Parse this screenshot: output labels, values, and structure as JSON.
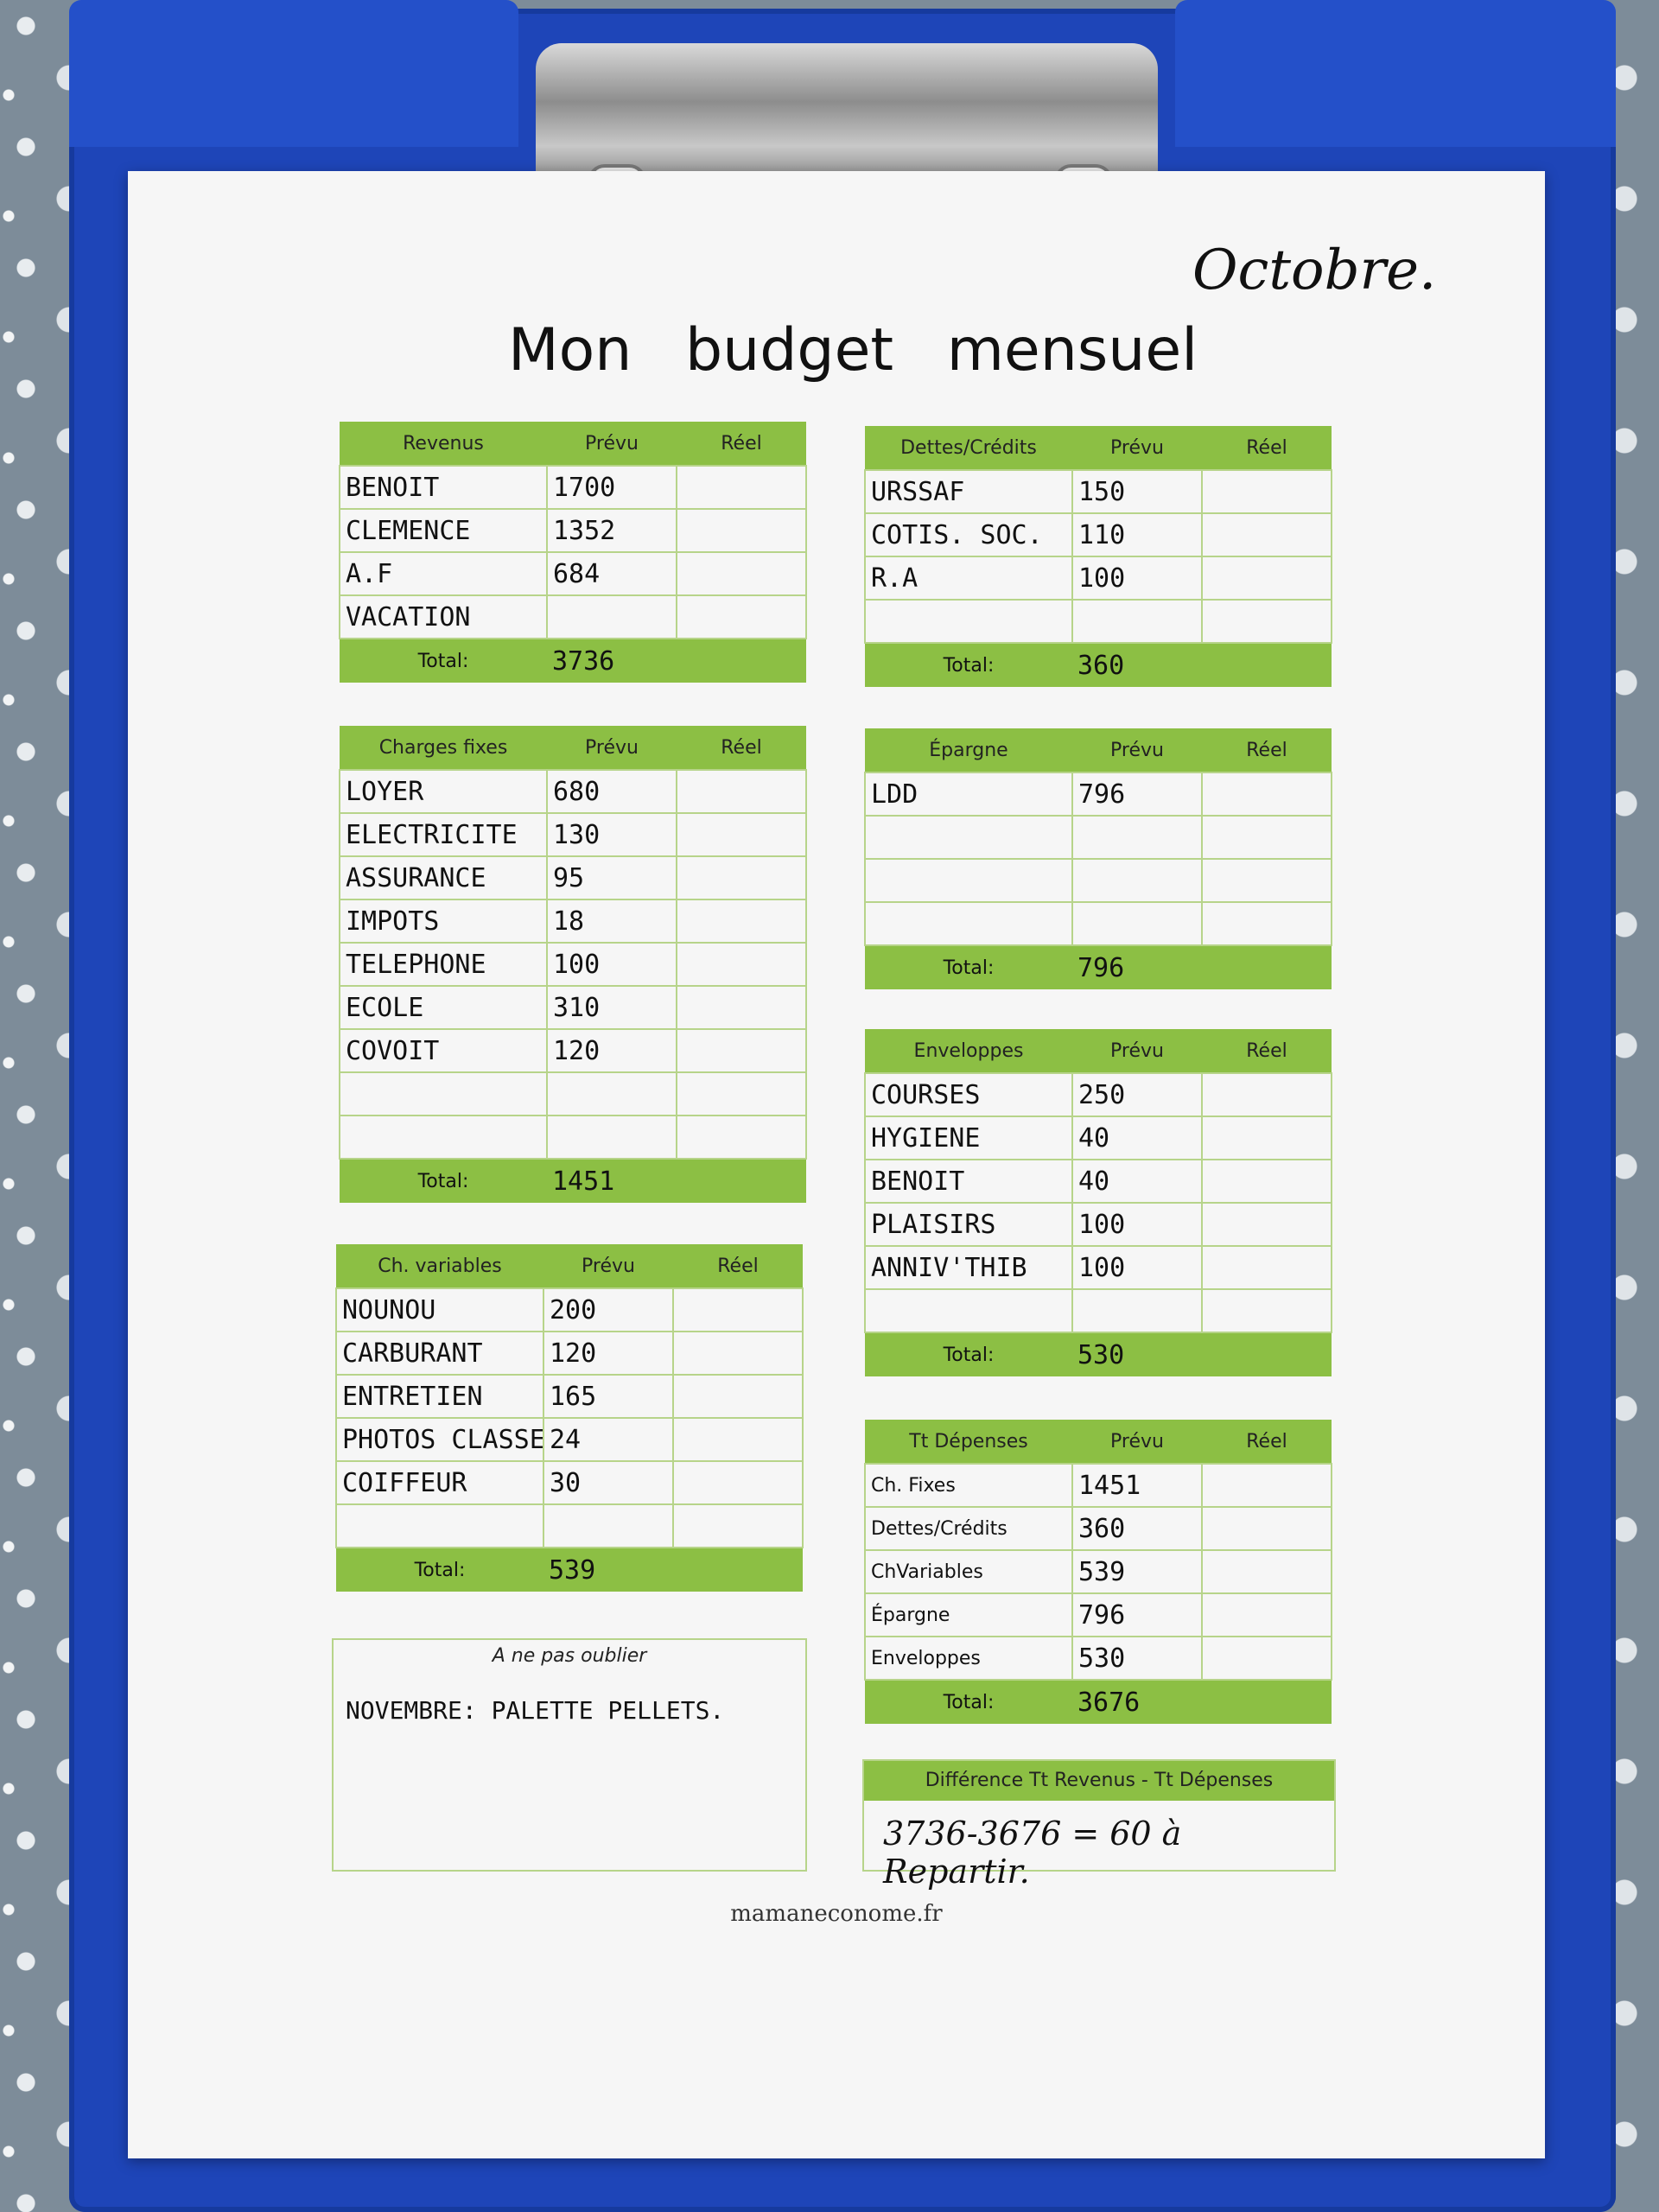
{
  "month": "Octobre.",
  "title": "Mon budget mensuel",
  "col_prevu": "Prévu",
  "col_reel": "Réel",
  "total_label": "Total:",
  "revenus": {
    "header": "Revenus",
    "rows": [
      {
        "label": "BENOIT",
        "prevu": "1700"
      },
      {
        "label": "CLEMENCE",
        "prevu": "1352"
      },
      {
        "label": "A.F",
        "prevu": "684"
      },
      {
        "label": "VACATION",
        "prevu": ""
      }
    ],
    "total": "3736"
  },
  "dettes": {
    "header": "Dettes/Crédits",
    "rows": [
      {
        "label": "URSSAF",
        "prevu": "150"
      },
      {
        "label": "COTIS. SOC.",
        "prevu": "110"
      },
      {
        "label": "R.A",
        "prevu": "100"
      },
      {
        "label": "",
        "prevu": ""
      }
    ],
    "total": "360"
  },
  "charges_fixes": {
    "header": "Charges fixes",
    "rows": [
      {
        "label": "LOYER",
        "prevu": "680"
      },
      {
        "label": "ELECTRICITE",
        "prevu": "130"
      },
      {
        "label": "ASSURANCE",
        "prevu": "95"
      },
      {
        "label": "IMPOTS",
        "prevu": "18"
      },
      {
        "label": "TELEPHONE",
        "prevu": "100"
      },
      {
        "label": "ECOLE",
        "prevu": "310"
      },
      {
        "label": "COVOIT",
        "prevu": "120"
      },
      {
        "label": "",
        "prevu": ""
      },
      {
        "label": "",
        "prevu": ""
      }
    ],
    "total": "1451"
  },
  "epargne": {
    "header": "Épargne",
    "rows": [
      {
        "label": "LDD",
        "prevu": "796"
      },
      {
        "label": "",
        "prevu": ""
      },
      {
        "label": "",
        "prevu": ""
      },
      {
        "label": "",
        "prevu": ""
      }
    ],
    "total": "796"
  },
  "enveloppes": {
    "header": "Enveloppes",
    "rows": [
      {
        "label": "COURSES",
        "prevu": "250"
      },
      {
        "label": "HYGIENE",
        "prevu": "40"
      },
      {
        "label": "BENOIT",
        "prevu": "40"
      },
      {
        "label": "PLAISIRS",
        "prevu": "100"
      },
      {
        "label": "ANNIV'THIB",
        "prevu": "100"
      },
      {
        "label": "",
        "prevu": ""
      }
    ],
    "total": "530"
  },
  "ch_variables": {
    "header": "Ch. variables",
    "rows": [
      {
        "label": "NOUNOU",
        "prevu": "200"
      },
      {
        "label": "CARBURANT",
        "prevu": "120"
      },
      {
        "label": "ENTRETIEN",
        "prevu": "165"
      },
      {
        "label": "PHOTOS CLASSE",
        "prevu": "24"
      },
      {
        "label": "COIFFEUR",
        "prevu": "30"
      },
      {
        "label": "",
        "prevu": ""
      }
    ],
    "total": "539"
  },
  "tt_depenses": {
    "header": "Tt Dépenses",
    "rows": [
      {
        "label": "Ch. Fixes",
        "prevu": "1451"
      },
      {
        "label": "Dettes/Crédits",
        "prevu": "360"
      },
      {
        "label": "ChVariables",
        "prevu": "539"
      },
      {
        "label": "Épargne",
        "prevu": "796"
      },
      {
        "label": "Enveloppes",
        "prevu": "530"
      }
    ],
    "total": "3676"
  },
  "note": {
    "header": "A ne pas oublier",
    "text": "NOVEMBRE: PALETTE PELLETS."
  },
  "difference": {
    "header": "Différence Tt Revenus - Tt Dépenses",
    "text": "3736-3676 = 60 à Repartir."
  },
  "website": "mamaneconome.fr"
}
